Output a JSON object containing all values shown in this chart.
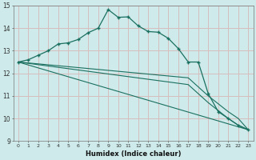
{
  "xlabel": "Humidex (Indice chaleur)",
  "background_color": "#ceeaea",
  "grid_color_major": "#a8cccc",
  "grid_color_minor": "#e8b8b8",
  "line_color": "#1a7060",
  "xlim": [
    -0.5,
    23.5
  ],
  "ylim": [
    9,
    15
  ],
  "yticks": [
    9,
    10,
    11,
    12,
    13,
    14,
    15
  ],
  "xticks": [
    0,
    1,
    2,
    3,
    4,
    5,
    6,
    7,
    8,
    9,
    10,
    11,
    12,
    13,
    14,
    15,
    16,
    17,
    18,
    19,
    20,
    21,
    22,
    23
  ],
  "series_curve": {
    "x": [
      0,
      1,
      2,
      3,
      4,
      5,
      6,
      7,
      8,
      9,
      10,
      11,
      12,
      13,
      14,
      15,
      16,
      17,
      18,
      19,
      20,
      21,
      22,
      23
    ],
    "y": [
      12.5,
      12.6,
      12.8,
      13.0,
      13.3,
      13.35,
      13.5,
      13.8,
      14.0,
      14.82,
      14.48,
      14.5,
      14.1,
      13.85,
      13.82,
      13.55,
      13.1,
      12.5,
      12.5,
      11.1,
      10.3,
      10.0,
      9.7,
      9.5
    ]
  },
  "series_line1": {
    "x": [
      0,
      23
    ],
    "y": [
      12.5,
      9.5
    ]
  },
  "series_line2": {
    "x": [
      0,
      17,
      19,
      21,
      22,
      23
    ],
    "y": [
      12.5,
      11.8,
      11.0,
      10.3,
      10.0,
      9.5
    ]
  },
  "series_line3": {
    "x": [
      0,
      17,
      19,
      21,
      22,
      23
    ],
    "y": [
      12.5,
      11.5,
      10.7,
      10.0,
      9.7,
      9.5
    ]
  }
}
